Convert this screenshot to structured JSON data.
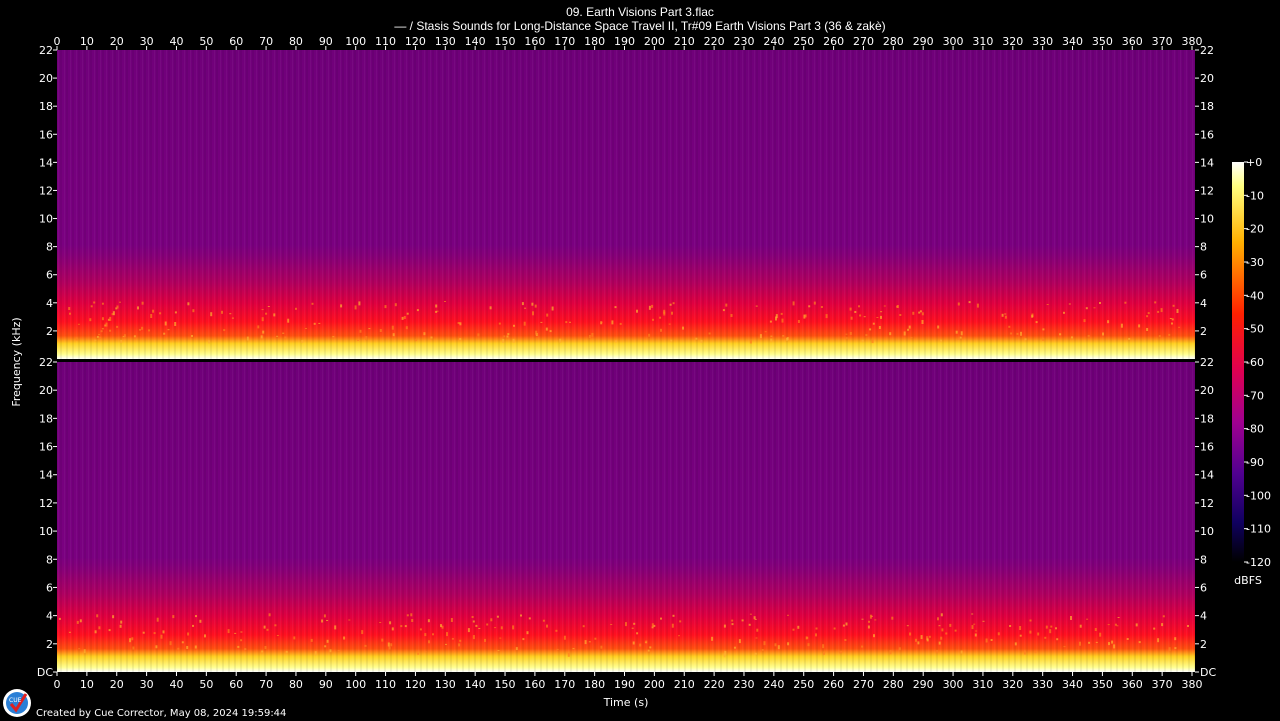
{
  "title": "09. Earth Visions Part 3.flac",
  "subtitle": "— / Stasis Sounds for Long-Distance Space Travel II, Tr#09 Earth Visions Part 3 (36 & zakè)",
  "footer": "Created by Cue Corrector, May 08, 2024 19:59:44",
  "logo_text": "CUE",
  "chart_data": {
    "type": "heatmap",
    "xlabel": "Time (s)",
    "ylabel": "Frequency (kHz)",
    "x_ticks": [
      0,
      10,
      20,
      30,
      40,
      50,
      60,
      70,
      80,
      90,
      100,
      110,
      120,
      130,
      140,
      150,
      160,
      170,
      180,
      190,
      200,
      210,
      220,
      230,
      240,
      250,
      260,
      270,
      280,
      290,
      300,
      310,
      320,
      330,
      340,
      350,
      360,
      370,
      380
    ],
    "xlim": [
      0,
      381
    ],
    "channels": [
      {
        "y_ticks": [
          "22",
          "20",
          "18",
          "16",
          "14",
          "12",
          "10",
          "8",
          "6",
          "4",
          "2"
        ],
        "ylim": [
          0,
          22
        ]
      },
      {
        "y_ticks": [
          "22",
          "20",
          "18",
          "16",
          "14",
          "12",
          "10",
          "8",
          "6",
          "4",
          "2",
          "DC"
        ],
        "ylim": [
          0,
          22
        ]
      }
    ],
    "colorbar": {
      "label": "dBFS",
      "ticks": [
        "+0",
        "-10",
        "-20",
        "-30",
        "-40",
        "-50",
        "-60",
        "-70",
        "-80",
        "-90",
        "-100",
        "-110",
        "-120"
      ],
      "range": [
        -120,
        0
      ]
    },
    "colors": {
      "background": "#000000",
      "low_band": "#ffff80",
      "mid_band": "#ff1020",
      "high_band": "#7a0080",
      "silence": "#000000"
    }
  }
}
